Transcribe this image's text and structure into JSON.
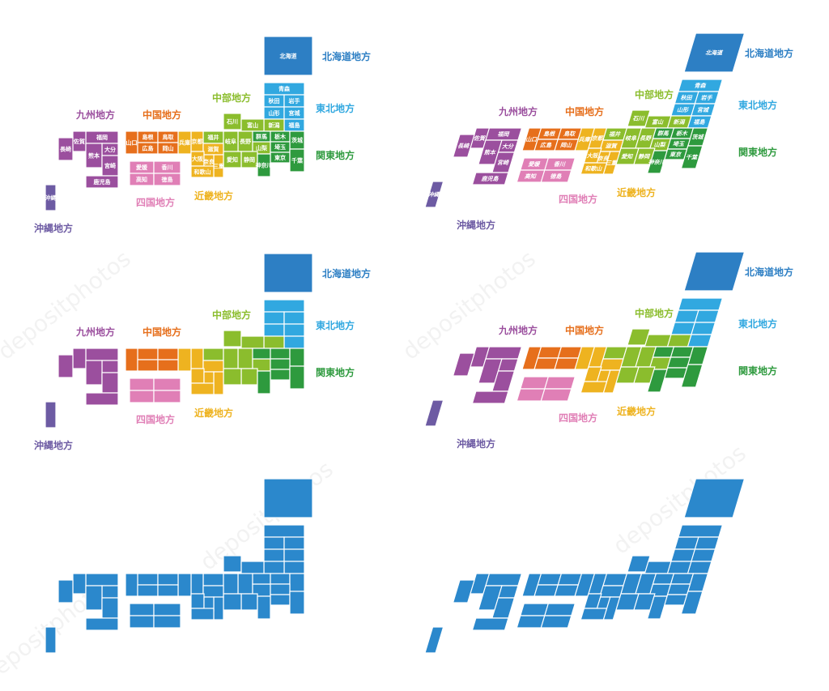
{
  "colors": {
    "hokkaido": "#2d7fc4",
    "tohoku": "#31a8e0",
    "kanto": "#2e9a3e",
    "chubu": "#8bbd2d",
    "kinki": "#eeb320",
    "chugoku": "#e66f1c",
    "shikoku": "#e07fb6",
    "kyushu": "#9b4f9e",
    "okinawa": "#6d5ba3",
    "mono": "#2b88cc"
  },
  "regions": {
    "hokkaido": "北海道地方",
    "tohoku": "東北地方",
    "kanto": "関東地方",
    "chubu": "中部地方",
    "kinki": "近畿地方",
    "chugoku": "中国地方",
    "shikoku": "四国地方",
    "kyushu": "九州地方",
    "okinawa": "沖縄地方"
  },
  "prefectures": {
    "hokkaido": "北海道",
    "aomori": "青森",
    "akita": "秋田",
    "iwate": "岩手",
    "yamagata": "山形",
    "miyagi": "宮城",
    "fukushima": "福島",
    "niigata": "新潟",
    "toyama": "富山",
    "ishikawa": "石川",
    "fukui": "福井",
    "nagano": "長野",
    "gifu": "岐阜",
    "gunma": "群馬",
    "tochigi": "栃木",
    "ibaraki": "茨城",
    "saitama": "埼玉",
    "tokyo": "東京",
    "chiba": "千葉",
    "kanagawa": "神奈川",
    "yamanashi": "山梨",
    "shizuoka": "静岡",
    "aichi": "愛知",
    "kyoto": "京都",
    "shiga": "滋賀",
    "hyogo": "兵庫",
    "osaka": "大阪",
    "nara": "奈良",
    "mie": "三重",
    "wakayama": "和歌山",
    "shimane": "島根",
    "tottori": "鳥取",
    "yamaguchi": "山口",
    "hiroshima": "広島",
    "okayama": "岡山",
    "ehime": "愛媛",
    "kagawa": "香川",
    "kochi": "高知",
    "tokushima": "徳島",
    "fukuoka": "福岡",
    "saga": "佐賀",
    "nagasaki": "長崎",
    "oita": "大分",
    "kumamoto": "熊本",
    "miyazaki": "宮崎",
    "kagoshima": "鹿児島",
    "okinawa": "沖縄"
  },
  "watermark": "depositphotos"
}
